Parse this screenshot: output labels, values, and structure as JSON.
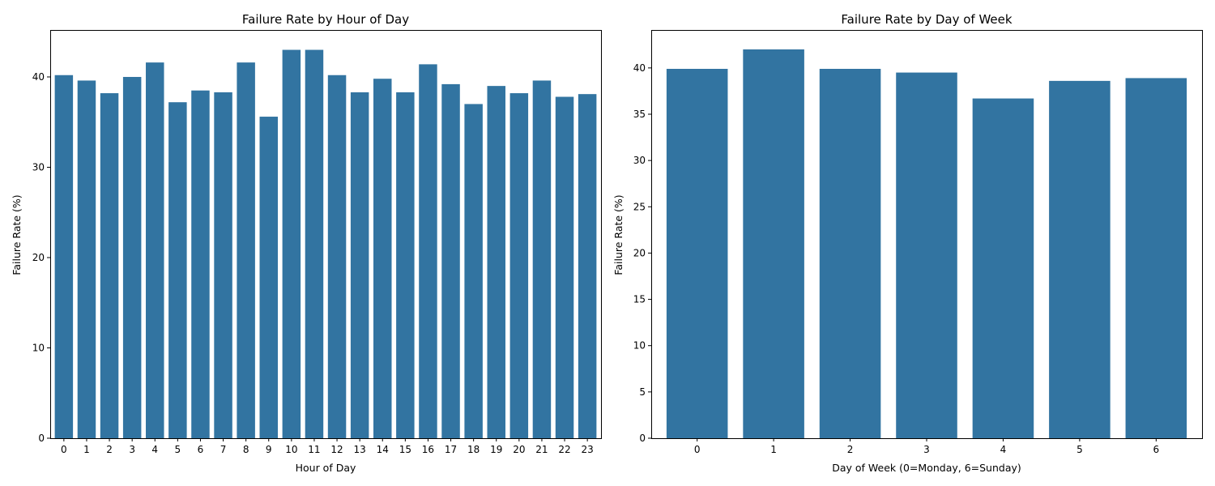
{
  "chart_data": [
    {
      "type": "bar",
      "title": "Failure Rate by Hour of Day",
      "xlabel": "Hour of Day",
      "ylabel": "Failure Rate (%)",
      "categories": [
        "0",
        "1",
        "2",
        "3",
        "4",
        "5",
        "6",
        "7",
        "8",
        "9",
        "10",
        "11",
        "12",
        "13",
        "14",
        "15",
        "16",
        "17",
        "18",
        "19",
        "20",
        "21",
        "22",
        "23"
      ],
      "values": [
        40.2,
        39.6,
        38.2,
        40.0,
        41.6,
        37.2,
        38.5,
        38.3,
        41.6,
        35.6,
        43.0,
        43.0,
        40.2,
        38.3,
        39.8,
        38.3,
        41.4,
        39.2,
        37.0,
        39.0,
        38.2,
        39.6,
        37.8,
        38.1
      ],
      "ylim": [
        0,
        45.2
      ],
      "yticks": [
        0,
        10,
        20,
        30,
        40
      ],
      "color": "#3274a1",
      "grid": false
    },
    {
      "type": "bar",
      "title": "Failure Rate by Day of Week",
      "xlabel": "Day of Week (0=Monday, 6=Sunday)",
      "ylabel": "Failure Rate (%)",
      "categories": [
        "0",
        "1",
        "2",
        "3",
        "4",
        "5",
        "6"
      ],
      "values": [
        39.9,
        42.0,
        39.9,
        39.5,
        36.7,
        38.6,
        38.9
      ],
      "ylim": [
        0,
        44.1
      ],
      "yticks": [
        0,
        5,
        10,
        15,
        20,
        25,
        30,
        35,
        40
      ],
      "color": "#3274a1",
      "grid": false
    }
  ]
}
